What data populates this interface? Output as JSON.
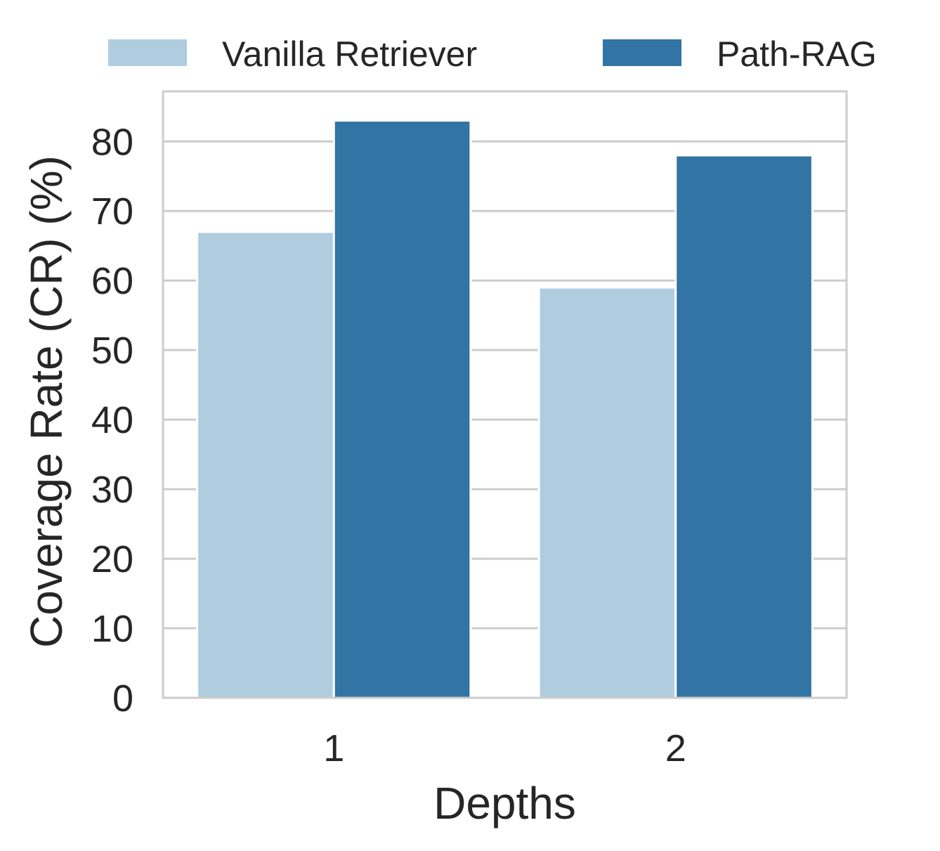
{
  "chart_data": {
    "type": "bar",
    "title": "",
    "xlabel": "Depths",
    "ylabel": "Coverage Rate (CR) (%)",
    "categories": [
      "1",
      "2"
    ],
    "series": [
      {
        "name": "Vanilla Retriever",
        "color": "#b0cde0",
        "values": [
          67,
          59
        ]
      },
      {
        "name": "Path-RAG",
        "color": "#3274a3",
        "values": [
          83,
          78
        ]
      }
    ],
    "ylim": [
      0,
      87.2
    ],
    "yticks": [
      0,
      10,
      20,
      30,
      40,
      50,
      60,
      70,
      80
    ],
    "grid": "horizontal",
    "legend_position": "top",
    "colors": {
      "grid": "#cccccc",
      "frame": "#cccccc",
      "text": "#262626"
    }
  }
}
